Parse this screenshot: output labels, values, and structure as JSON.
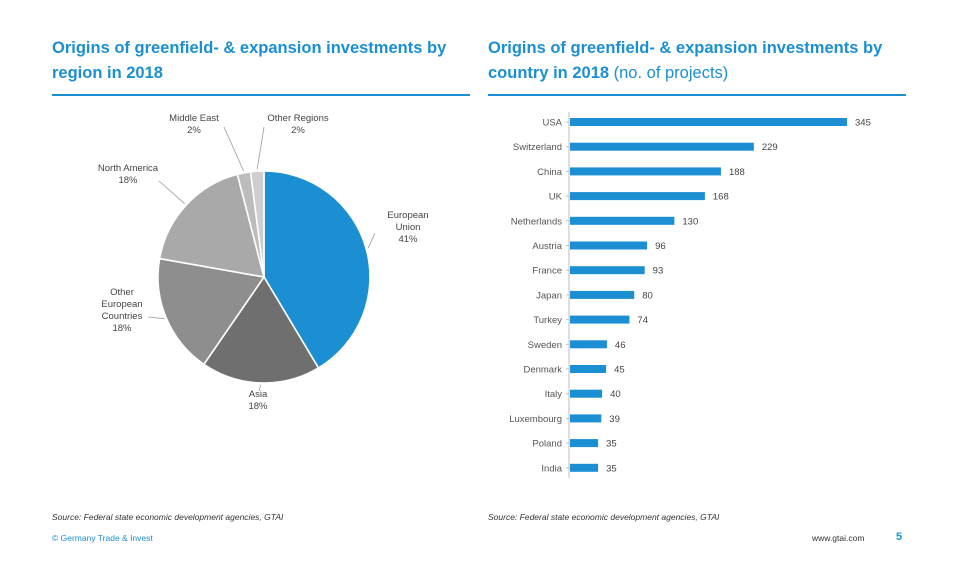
{
  "pie_panel": {
    "title": "Origins of greenfield- & expansion investments by region in 2018",
    "source": "Source:  Federal state economic development agencies, GTAI"
  },
  "bar_panel": {
    "title": "Origins of greenfield- & expansion investments by country in 2018",
    "title_unit": "(no. of projects)",
    "source": "Source:  Federal state economic development agencies, GTAI"
  },
  "footer": {
    "copyright": "© Germany Trade & Invest",
    "url": "www.gtai.com",
    "page_number": "5"
  },
  "chart_data": [
    {
      "type": "pie",
      "title": "Origins of greenfield- & expansion investments by region in 2018",
      "slices": [
        {
          "label": [
            "European",
            "Union"
          ],
          "value": 41,
          "display": "41%",
          "color": "#1b8fd2"
        },
        {
          "label": [
            "Asia"
          ],
          "value": 18,
          "display": "18%",
          "color": "#6f6f6f"
        },
        {
          "label": [
            "Other",
            "European",
            "Countries"
          ],
          "value": 18,
          "display": "18%",
          "color": "#8e8e8e"
        },
        {
          "label": [
            "North America"
          ],
          "value": 18,
          "display": "18%",
          "color": "#a9a9a9"
        },
        {
          "label": [
            "Middle East"
          ],
          "value": 2,
          "display": "2%",
          "color": "#bcbcbc"
        },
        {
          "label": [
            "Other Regions"
          ],
          "value": 2,
          "display": "2%",
          "color": "#cecece"
        }
      ]
    },
    {
      "type": "bar",
      "orientation": "horizontal",
      "title": "Origins of greenfield- & expansion investments by country in 2018",
      "unit": "(no. of projects)",
      "bar_color": "#1b8fd2",
      "categories": [
        "USA",
        "Switzerland",
        "China",
        "UK",
        "Netherlands",
        "Austria",
        "France",
        "Japan",
        "Turkey",
        "Sweden",
        "Denmark",
        "Italy",
        "Luxembourg",
        "Poland",
        "India"
      ],
      "values": [
        345,
        229,
        188,
        168,
        130,
        96,
        93,
        80,
        74,
        46,
        45,
        40,
        39,
        35,
        35
      ],
      "xlim": [
        0,
        345
      ]
    }
  ]
}
